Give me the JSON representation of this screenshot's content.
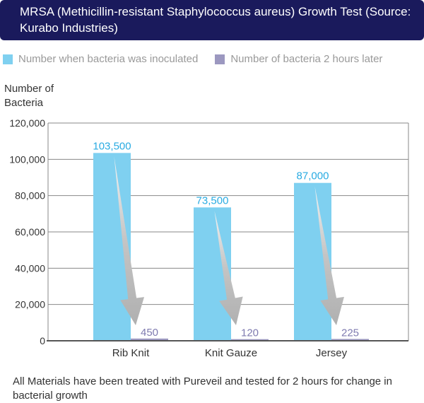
{
  "chart_data": {
    "type": "bar",
    "title": "MRSA (Methicillin-resistant Staphylococcus aureus) Growth Test (Source: Kurabo Industries)",
    "ylabel": "Number of Bacteria",
    "xlabel": "",
    "ylim": [
      0,
      120000
    ],
    "yticks": [
      0,
      20000,
      40000,
      60000,
      80000,
      100000,
      120000
    ],
    "ytick_labels": [
      "0",
      "20,000",
      "40,000",
      "60,000",
      "80,000",
      "100,000",
      "120,000"
    ],
    "grid": true,
    "legend_position": "top",
    "categories": [
      "Rib Knit",
      "Knit Gauze",
      "Jersey"
    ],
    "series": [
      {
        "name": "Number when bacteria was inoculated",
        "values": [
          103500,
          73500,
          87000
        ],
        "labels": [
          "103,500",
          "73,500",
          "87,000"
        ],
        "color": "#7fd0f0",
        "label_color": "#29abe2"
      },
      {
        "name": "Number of bacteria 2 hours later",
        "values": [
          450,
          120,
          225
        ],
        "labels": [
          "450",
          "120",
          "225"
        ],
        "color": "#9c98c0",
        "label_color": "#7f7bb0"
      }
    ],
    "footnote": "All Materials have been treated with Pureveil and tested for 2 hours for change in bacterial growth"
  }
}
